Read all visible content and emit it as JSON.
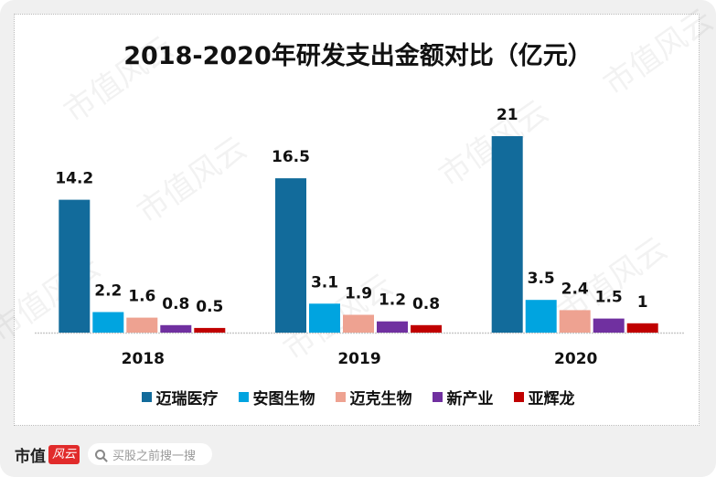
{
  "chart_data": {
    "type": "bar",
    "title": "2018-2020年研发支出金额对比（亿元）",
    "xlabel": "",
    "ylabel": "",
    "ylim": [
      0,
      21
    ],
    "grid": false,
    "legend_position": "bottom",
    "categories": [
      "2018",
      "2019",
      "2020"
    ],
    "series": [
      {
        "name": "迈瑞医疗",
        "color": "#126b9b",
        "values": [
          14.2,
          16.5,
          21
        ],
        "labels": [
          "14.2",
          "16.5",
          "21"
        ]
      },
      {
        "name": "安图生物",
        "color": "#00a4e0",
        "values": [
          2.2,
          3.1,
          3.5
        ],
        "labels": [
          "2.2",
          "3.1",
          "3.5"
        ]
      },
      {
        "name": "迈克生物",
        "color": "#eea291",
        "values": [
          1.6,
          1.9,
          2.4
        ],
        "labels": [
          "1.6",
          "1.9",
          "2.4"
        ]
      },
      {
        "name": "新产业",
        "color": "#7030a0",
        "values": [
          0.8,
          1.2,
          1.5
        ],
        "labels": [
          "0.8",
          "1.2",
          "1.5"
        ]
      },
      {
        "name": "亚辉龙",
        "color": "#c00000",
        "values": [
          0.5,
          0.8,
          1
        ],
        "labels": [
          "0.5",
          "0.8",
          "1"
        ]
      }
    ]
  },
  "watermark": "市值风云",
  "footer": {
    "brand": "市值",
    "brand_badge": "风云",
    "search_placeholder": "买股之前搜一搜",
    "search_icon": "search-icon"
  }
}
